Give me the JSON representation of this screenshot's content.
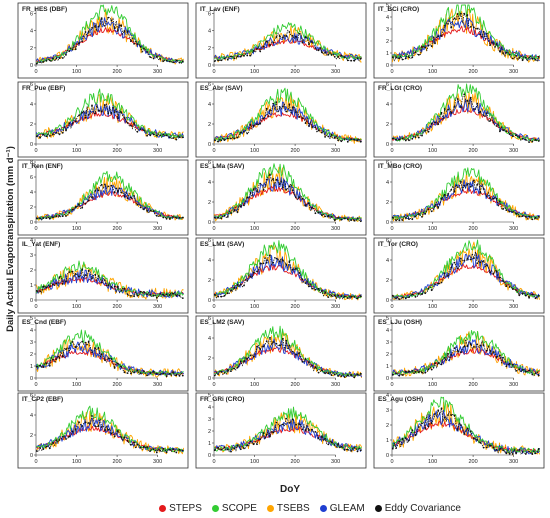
{
  "figure": {
    "ylabel": "Daily Actual Evapotranspiration (mm d⁻¹)",
    "xlabel": "DoY"
  },
  "legend": [
    {
      "name": "STEPS",
      "color": "#e41a1c"
    },
    {
      "name": "SCOPE",
      "color": "#33cc33"
    },
    {
      "name": "TSEBS",
      "color": "#ffa500"
    },
    {
      "name": "GLEAM",
      "color": "#1f3fd1"
    },
    {
      "name": "Eddy Covariance",
      "color": "#111111"
    }
  ],
  "chart_data": [
    {
      "title": "FR_HES (DBF)",
      "type": "line",
      "xlim": [
        0,
        365
      ],
      "ylim": [
        0,
        7
      ],
      "yticks": [
        0,
        2,
        4,
        6
      ],
      "peak": 6.5,
      "base": 0.4,
      "peak_doy": 175
    },
    {
      "title": "IT_Lav (ENF)",
      "type": "line",
      "xlim": [
        0,
        365
      ],
      "ylim": [
        0,
        7
      ],
      "yticks": [
        0,
        2,
        4,
        6
      ],
      "peak": 4.5,
      "base": 0.8,
      "peak_doy": 185
    },
    {
      "title": "IT_BCi (CRO)",
      "type": "line",
      "xlim": [
        0,
        365
      ],
      "ylim": [
        0,
        5
      ],
      "yticks": [
        0,
        1,
        2,
        3,
        4,
        5
      ],
      "peak": 4.8,
      "base": 0.6,
      "peak_doy": 170
    },
    {
      "title": "FR_Pue (EBF)",
      "type": "line",
      "xlim": [
        0,
        365
      ],
      "ylim": [
        0,
        6
      ],
      "yticks": [
        0,
        2,
        4,
        6
      ],
      "peak": 4.8,
      "base": 0.8,
      "peak_doy": 160
    },
    {
      "title": "ES_Abr (SAV)",
      "type": "line",
      "xlim": [
        0,
        365
      ],
      "ylim": [
        0,
        6
      ],
      "yticks": [
        0,
        2,
        4,
        6
      ],
      "peak": 4.9,
      "base": 0.4,
      "peak_doy": 170
    },
    {
      "title": "FR_LGt (CRO)",
      "type": "line",
      "xlim": [
        0,
        365
      ],
      "ylim": [
        0,
        6
      ],
      "yticks": [
        0,
        2,
        4,
        6
      ],
      "peak": 5.5,
      "base": 0.4,
      "peak_doy": 180
    },
    {
      "title": "IT_Ren (ENF)",
      "type": "line",
      "xlim": [
        0,
        365
      ],
      "ylim": [
        0,
        8
      ],
      "yticks": [
        0,
        2,
        4,
        6,
        8
      ],
      "peak": 6.0,
      "base": 0.5,
      "peak_doy": 185
    },
    {
      "title": "ES_LMa (SAV)",
      "type": "line",
      "xlim": [
        0,
        365
      ],
      "ylim": [
        0,
        6
      ],
      "yticks": [
        0,
        2,
        4,
        6
      ],
      "peak": 5.4,
      "base": 0.3,
      "peak_doy": 150
    },
    {
      "title": "IT_MBo (CRO)",
      "type": "line",
      "xlim": [
        0,
        365
      ],
      "ylim": [
        0,
        6
      ],
      "yticks": [
        0,
        2,
        4,
        6
      ],
      "peak": 5.0,
      "base": 0.4,
      "peak_doy": 190
    },
    {
      "title": "IL_Yat (ENF)",
      "type": "line",
      "xlim": [
        0,
        365
      ],
      "ylim": [
        0,
        4
      ],
      "yticks": [
        0,
        1,
        2,
        3,
        4
      ],
      "peak": 2.2,
      "base": 0.4,
      "peak_doy": 110
    },
    {
      "title": "ES_LM1 (SAV)",
      "type": "line",
      "xlim": [
        0,
        365
      ],
      "ylim": [
        0,
        6
      ],
      "yticks": [
        0,
        2,
        4,
        6
      ],
      "peak": 5.3,
      "base": 0.3,
      "peak_doy": 150
    },
    {
      "title": "IT_Tor (CRO)",
      "type": "line",
      "xlim": [
        0,
        365
      ],
      "ylim": [
        0,
        6
      ],
      "yticks": [
        0,
        2,
        4,
        6
      ],
      "peak": 5.6,
      "base": 0.3,
      "peak_doy": 195
    },
    {
      "title": "ES_Cnd (EBF)",
      "type": "line",
      "xlim": [
        0,
        365
      ],
      "ylim": [
        0,
        5
      ],
      "yticks": [
        0,
        1,
        2,
        3,
        4,
        5
      ],
      "peak": 3.5,
      "base": 0.4,
      "peak_doy": 110
    },
    {
      "title": "ES_LM2 (SAV)",
      "type": "line",
      "xlim": [
        0,
        365
      ],
      "ylim": [
        0,
        6
      ],
      "yticks": [
        0,
        2,
        4,
        6
      ],
      "peak": 4.6,
      "base": 0.3,
      "peak_doy": 150
    },
    {
      "title": "ES_LJu (OSH)",
      "type": "line",
      "xlim": [
        0,
        365
      ],
      "ylim": [
        0,
        5
      ],
      "yticks": [
        0,
        1,
        2,
        3,
        4,
        5
      ],
      "peak": 3.7,
      "base": 0.4,
      "peak_doy": 200
    },
    {
      "title": "IT_CP2 (EBF)",
      "type": "line",
      "xlim": [
        0,
        365
      ],
      "ylim": [
        0,
        6
      ],
      "yticks": [
        0,
        2,
        4,
        6
      ],
      "peak": 4.3,
      "base": 0.5,
      "peak_doy": 140
    },
    {
      "title": "FR_GRi (CRO)",
      "type": "line",
      "xlim": [
        0,
        365
      ],
      "ylim": [
        0,
        5
      ],
      "yticks": [
        0,
        1,
        2,
        3,
        4,
        5
      ],
      "peak": 3.5,
      "base": 0.5,
      "peak_doy": 190
    },
    {
      "title": "ES_Agu (OSH)",
      "type": "line",
      "xlim": [
        0,
        365
      ],
      "ylim": [
        0,
        4
      ],
      "yticks": [
        0,
        1,
        2,
        3,
        4
      ],
      "peak": 3.4,
      "base": 0.3,
      "peak_doy": 120
    }
  ],
  "xticks": [
    0,
    100,
    200,
    300
  ]
}
